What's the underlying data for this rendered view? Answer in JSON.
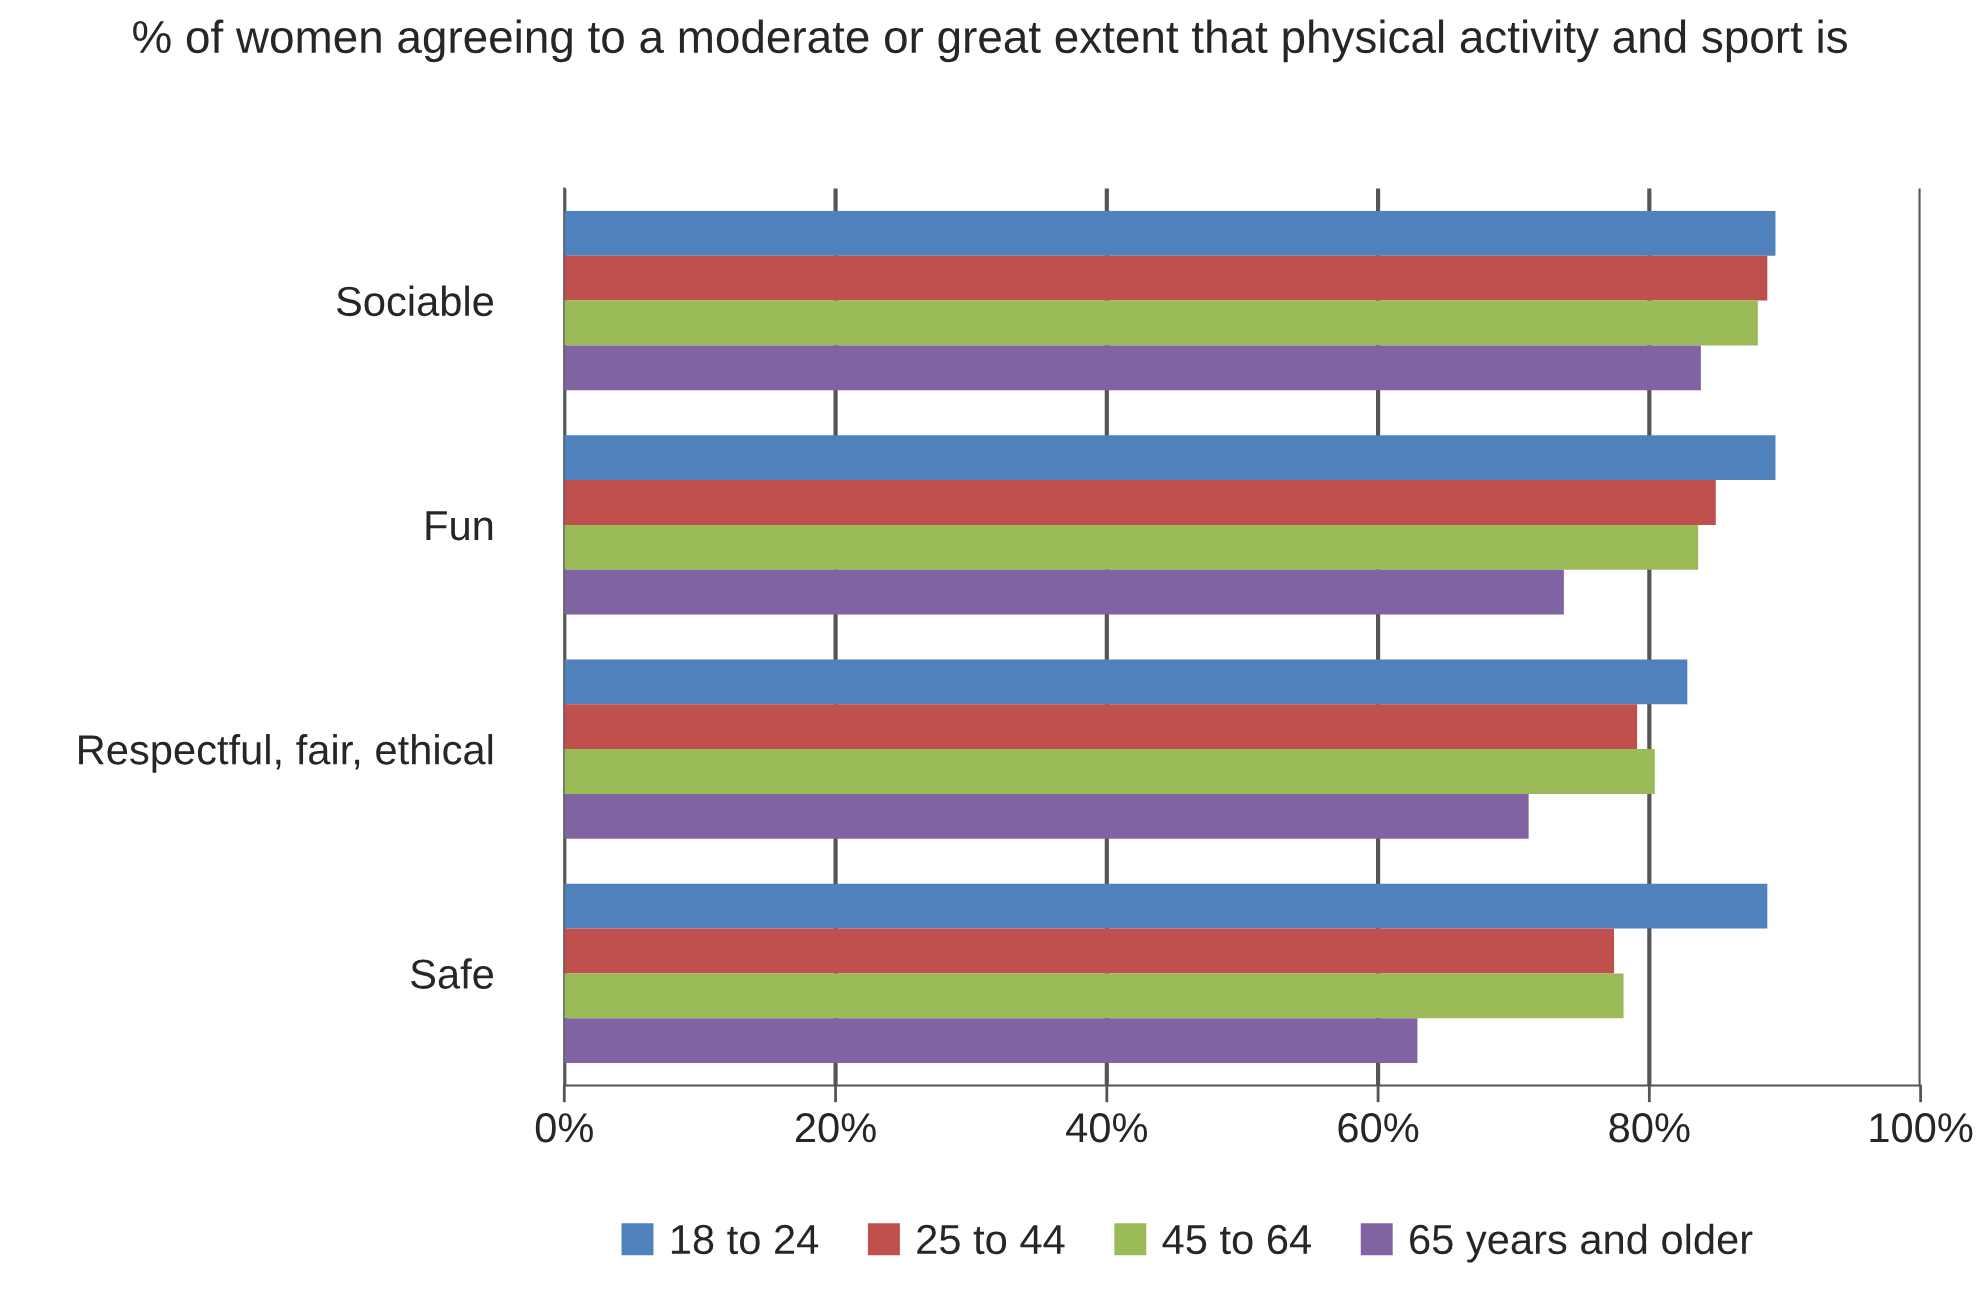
{
  "chart_data": {
    "type": "bar",
    "orientation": "horizontal",
    "title": "% of women agreeing to a moderate or great extent that physical activity and sport is",
    "categories": [
      "Sociable",
      "Fun",
      "Respectful, fair, ethical",
      "Safe"
    ],
    "series": [
      {
        "name": "18 to 24",
        "color": "#4f81bd",
        "values": [
          89.3,
          89.3,
          82.8,
          88.7
        ]
      },
      {
        "name": "25 to 44",
        "color": "#c0504d",
        "values": [
          88.7,
          84.9,
          79.1,
          77.4
        ]
      },
      {
        "name": "45 to 64",
        "color": "#9bbb59",
        "values": [
          88.0,
          83.6,
          80.4,
          78.1
        ]
      },
      {
        "name": "65 years and older",
        "color": "#8064a2",
        "values": [
          83.8,
          73.7,
          71.1,
          62.9
        ]
      }
    ],
    "xlim": [
      0,
      100
    ],
    "xticks": [
      {
        "value": 0,
        "label": "0%"
      },
      {
        "value": 20,
        "label": "20%"
      },
      {
        "value": 40,
        "label": "40%"
      },
      {
        "value": 60,
        "label": "60%"
      },
      {
        "value": 80,
        "label": "80%"
      },
      {
        "value": 100,
        "label": "100%"
      }
    ],
    "grid": "x",
    "legend": "bottom"
  }
}
